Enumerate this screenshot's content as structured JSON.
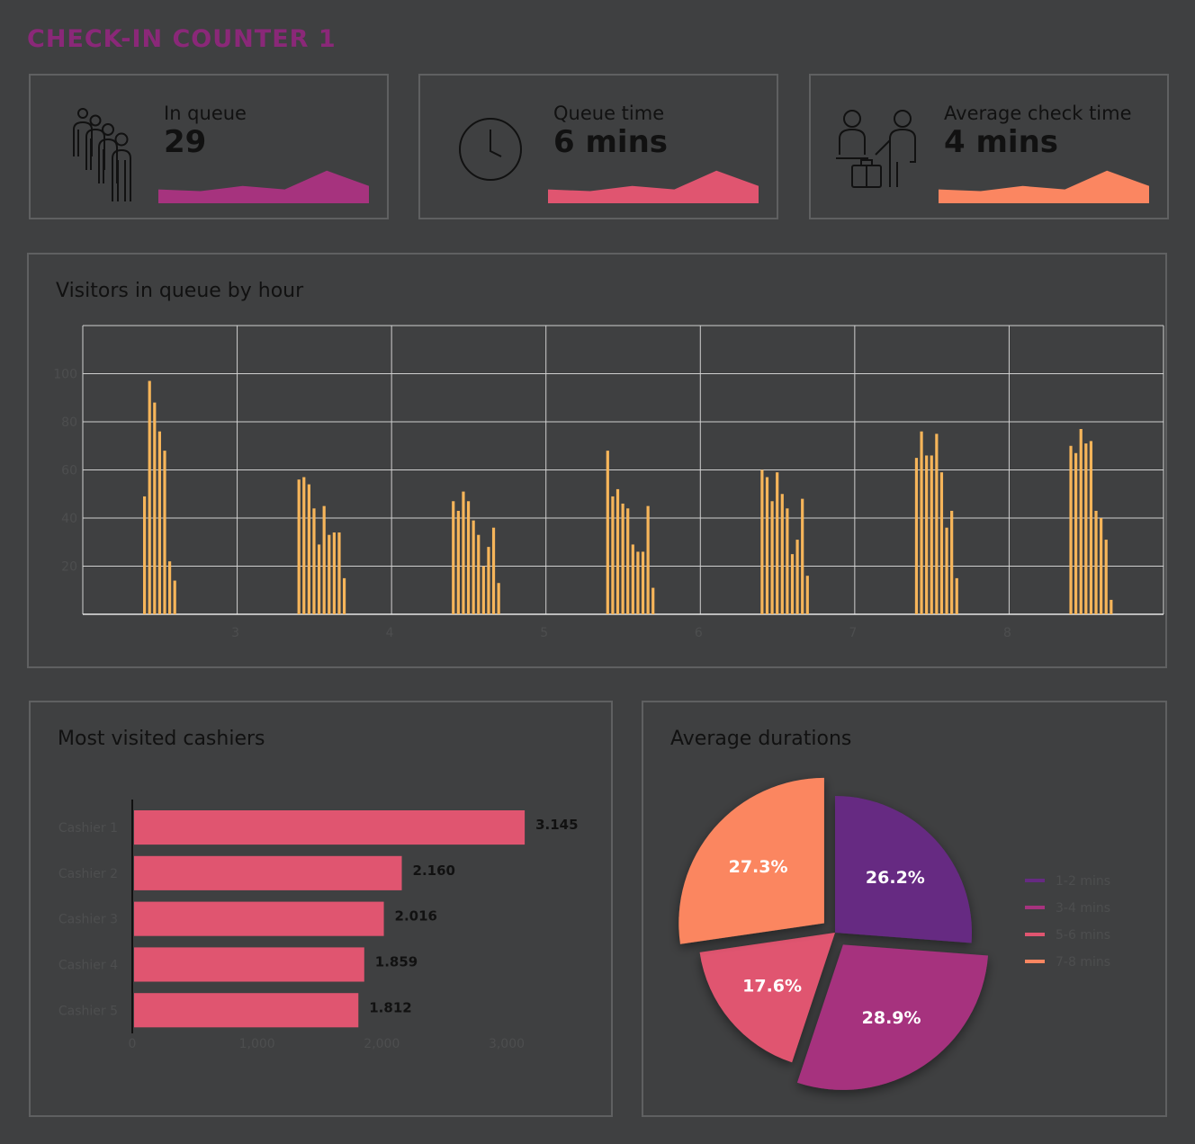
{
  "title": "CHECK-IN COUNTER 1",
  "kpis": [
    {
      "icon": "people-queue-icon",
      "label": "In queue",
      "value": "29",
      "color": "#a6337e",
      "spark": [
        30,
        25,
        40,
        30,
        85,
        40
      ]
    },
    {
      "icon": "clock-icon",
      "label": "Queue time",
      "value": "6 mins",
      "color": "#e05570",
      "spark": [
        30,
        25,
        40,
        30,
        85,
        40
      ]
    },
    {
      "icon": "check-in-agent-luggage-icon",
      "label": "Average check time",
      "value": "4 mins",
      "color": "#fb8661",
      "spark": [
        30,
        25,
        40,
        30,
        85,
        40
      ]
    }
  ],
  "chart_data": [
    {
      "type": "bar",
      "title": "Visitors in queue by hour",
      "color": "#f6b55a",
      "x_ticks": [
        "3",
        "4",
        "5",
        "6",
        "7",
        "8"
      ],
      "yticks": [
        20,
        40,
        60,
        80,
        100
      ],
      "ylim": [
        0,
        120
      ],
      "grid": true,
      "groups": [
        [
          49,
          97,
          88,
          76,
          68,
          22,
          14
        ],
        [
          56,
          57,
          54,
          44,
          29,
          45,
          33,
          34,
          34,
          15
        ],
        [
          47,
          43,
          51,
          47,
          39,
          33,
          20,
          28,
          36,
          13
        ],
        [
          68,
          49,
          52,
          46,
          44,
          29,
          26,
          26,
          45,
          11
        ],
        [
          60,
          57,
          47,
          59,
          50,
          44,
          25,
          31,
          48,
          16
        ],
        [
          65,
          76,
          66,
          66,
          75,
          59,
          36,
          43,
          15
        ],
        [
          70,
          67,
          77,
          71,
          72,
          43,
          40,
          31,
          6
        ]
      ]
    },
    {
      "type": "bar",
      "orientation": "horizontal",
      "title": "Most visited cashiers",
      "color": "#e05570",
      "categories": [
        "Cashier 1",
        "Cashier 2",
        "Cashier 3",
        "Cashier 4",
        "Cashier 5"
      ],
      "values": [
        3145,
        2160,
        2016,
        1859,
        1812
      ],
      "value_labels": [
        "3.145",
        "2.160",
        "2.016",
        "1.859",
        "1.812"
      ],
      "xticks": [
        "0",
        "1,000",
        "2,000",
        "3,000"
      ],
      "xlim": [
        0,
        3000
      ]
    },
    {
      "type": "pie",
      "title": "Average durations",
      "legend_position": "right",
      "slices": [
        {
          "name": "1-2 mins",
          "value": 26.2,
          "label": "26.2%",
          "color": "#662a82"
        },
        {
          "name": "3-4 mins",
          "value": 28.9,
          "label": "28.9%",
          "color": "#a6337e"
        },
        {
          "name": "5-6 mins",
          "value": 17.6,
          "label": "17.6%",
          "color": "#e05570"
        },
        {
          "name": "7-8 mins",
          "value": 27.3,
          "label": "27.3%",
          "color": "#fb8661"
        }
      ]
    }
  ]
}
